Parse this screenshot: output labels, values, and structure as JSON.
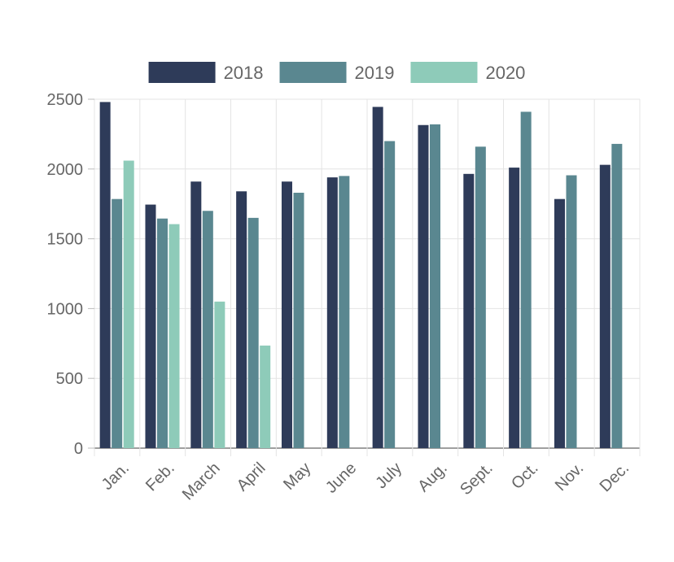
{
  "chart_data": {
    "type": "bar",
    "title": "",
    "xlabel": "",
    "ylabel": "",
    "categories": [
      "Jan.",
      "Feb.",
      "March",
      "April",
      "May",
      "June",
      "July",
      "Aug.",
      "Sept.",
      "Oct.",
      "Nov.",
      "Dec."
    ],
    "series": [
      {
        "name": "2018",
        "color": "#2e3b59",
        "values": [
          2480,
          1745,
          1910,
          1840,
          1910,
          1940,
          2445,
          2315,
          1965,
          2010,
          1785,
          2030
        ]
      },
      {
        "name": "2019",
        "color": "#5a8790",
        "values": [
          1785,
          1645,
          1700,
          1650,
          1830,
          1950,
          2200,
          2320,
          2160,
          2410,
          1955,
          2180
        ]
      },
      {
        "name": "2020",
        "color": "#8ecbb9",
        "values": [
          2060,
          1605,
          1050,
          735,
          null,
          null,
          null,
          null,
          null,
          null,
          null,
          null
        ]
      }
    ],
    "ylim": [
      0,
      2500
    ],
    "yticks": [
      0,
      500,
      1000,
      1500,
      2000,
      2500
    ],
    "grid": true,
    "legend_position": "top-center"
  }
}
